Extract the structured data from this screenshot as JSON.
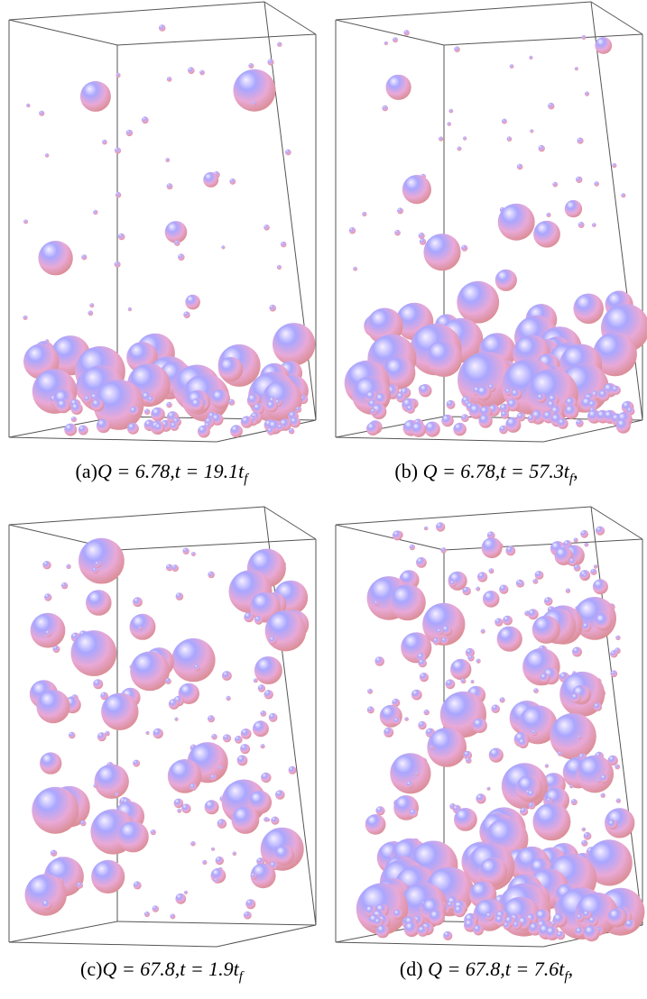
{
  "panels": [
    {
      "label": "(a)",
      "math": "Q = 6.78,t = 19.1t",
      "subscript": "f"
    },
    {
      "label": "(b) ",
      "math": "Q = 6.78,t = 57.3t",
      "subscript": "f",
      "suffix": ","
    },
    {
      "label": "(c)",
      "math": "Q = 67.8,t = 1.9t",
      "subscript": "f"
    },
    {
      "label": "(d) ",
      "math": "Q = 67.8,t = 7.6t",
      "subscript": "f",
      "suffix": ","
    }
  ]
}
